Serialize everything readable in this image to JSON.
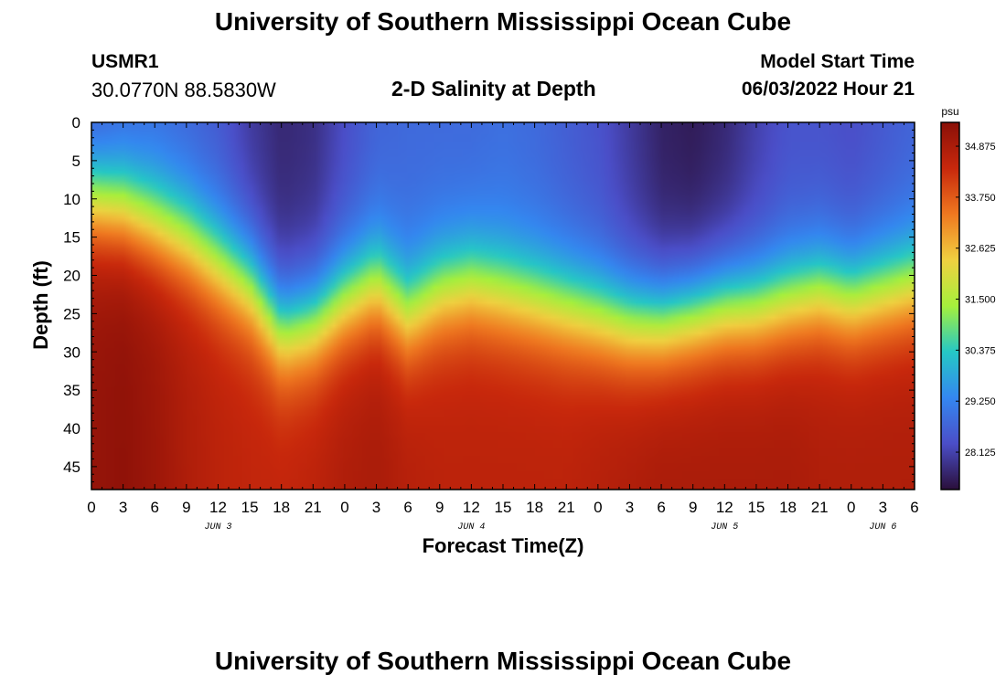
{
  "header": {
    "title": "University of Southern Mississippi Ocean Cube",
    "station": "USMR1",
    "coordinates": "30.0770N  88.5830W",
    "subtitle": "2-D Salinity at Depth",
    "model_start_label": "Model Start Time",
    "model_start_value": "06/03/2022 Hour 21"
  },
  "footer": {
    "title": "University of Southern Mississippi Ocean Cube"
  },
  "colors": {
    "colormap": [
      "#2a0f3a",
      "#4b4ec8",
      "#3487f0",
      "#25c8c5",
      "#a5f03c",
      "#f0d040",
      "#ef7820",
      "#c8280c",
      "#8a1008"
    ]
  },
  "chart_data": {
    "type": "heatmap",
    "xlabel": "Forecast Time(Z)",
    "ylabel": "Depth (ft)",
    "colorbar_unit": "psu",
    "x_tick_labels": [
      "0",
      "3",
      "6",
      "9",
      "12",
      "15",
      "18",
      "21",
      "0",
      "3",
      "6",
      "9",
      "12",
      "15",
      "18",
      "21",
      "0",
      "3",
      "6",
      "9",
      "12",
      "15",
      "18",
      "21",
      "0",
      "3",
      "6"
    ],
    "x_hours_from_jun3_00z": [
      0,
      3,
      6,
      9,
      12,
      15,
      18,
      21,
      24,
      27,
      30,
      33,
      36,
      39,
      42,
      45,
      48,
      51,
      54,
      57,
      60,
      63,
      66,
      69,
      72,
      75,
      78
    ],
    "date_labels": [
      {
        "text": "JUN 3",
        "hour": 12
      },
      {
        "text": "JUN 4",
        "hour": 36
      },
      {
        "text": "JUN 5",
        "hour": 60
      },
      {
        "text": "JUN 6",
        "hour": 75
      }
    ],
    "y_ticks": [
      0,
      5,
      10,
      15,
      20,
      25,
      30,
      35,
      40,
      45
    ],
    "y_range": [
      0,
      48
    ],
    "x_range": [
      0,
      78
    ],
    "colorbar_ticks": [
      "34.875",
      "33.750",
      "32.625",
      "31.500",
      "30.375",
      "29.250",
      "28.125"
    ],
    "colorbar_range": [
      27.3,
      35.4
    ],
    "profile_hours": [
      0,
      3,
      6,
      9,
      12,
      15,
      18,
      21,
      24,
      27,
      30,
      33,
      36,
      39,
      42,
      45,
      48,
      51,
      54,
      57,
      60,
      63,
      66,
      69,
      72,
      75,
      78
    ],
    "halocline_depth_ft": [
      10,
      11,
      13,
      15,
      18,
      21,
      27,
      26,
      23,
      21,
      25,
      22,
      21,
      22,
      23,
      24,
      25,
      26,
      26,
      25,
      24,
      24,
      23,
      22,
      23,
      22,
      21
    ],
    "surface_salinity_psu": [
      28.3,
      28.6,
      28.8,
      28.7,
      28.5,
      28.0,
      27.7,
      27.8,
      28.3,
      28.7,
      28.8,
      28.8,
      28.8,
      28.9,
      28.8,
      28.6,
      28.4,
      28.0,
      27.6,
      27.5,
      27.7,
      28.1,
      28.4,
      28.4,
      28.3,
      28.5,
      28.7
    ],
    "bottom_salinity_psu": [
      35.2,
      35.3,
      35.1,
      34.8,
      34.6,
      34.5,
      34.5,
      34.6,
      34.8,
      34.9,
      34.7,
      34.6,
      34.6,
      34.6,
      34.6,
      34.6,
      34.7,
      34.8,
      34.9,
      34.9,
      34.9,
      34.9,
      34.9,
      34.8,
      34.8,
      34.8,
      34.8
    ]
  }
}
